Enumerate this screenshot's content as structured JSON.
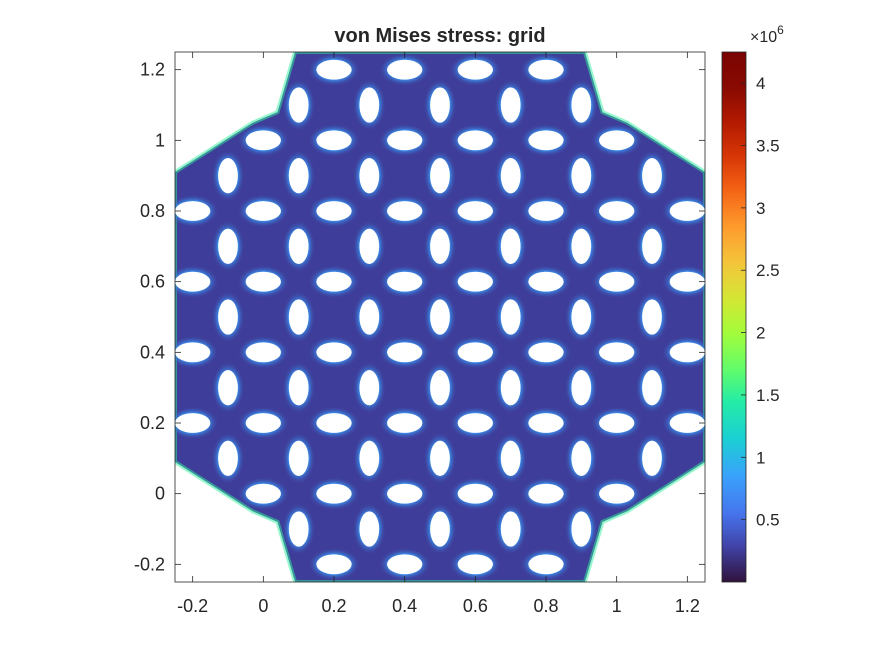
{
  "chart_data": {
    "type": "heatmap",
    "title": "von Mises stress: grid",
    "xlabel": "",
    "ylabel": "",
    "xlim": [
      -0.25,
      1.25
    ],
    "ylim": [
      -0.25,
      1.25
    ],
    "x_ticks": [
      "-0.2",
      "0",
      "0.2",
      "0.4",
      "0.6",
      "0.8",
      "1",
      "1.2"
    ],
    "x_tick_values": [
      -0.2,
      0,
      0.2,
      0.4,
      0.6,
      0.8,
      1,
      1.2
    ],
    "y_ticks": [
      "-0.2",
      "0",
      "0.2",
      "0.4",
      "0.6",
      "0.8",
      "1",
      "1.2"
    ],
    "y_tick_values": [
      -0.2,
      0,
      0.2,
      0.4,
      0.6,
      0.8,
      1,
      1.2
    ],
    "colorbar": {
      "colormap": "turbo",
      "range": [
        0.0,
        4.25
      ],
      "ticks": [
        "0.5",
        "1",
        "1.5",
        "2",
        "2.5",
        "3",
        "3.5",
        "4"
      ],
      "tick_values": [
        0.5,
        1,
        1.5,
        2,
        2.5,
        3,
        3.5,
        4
      ],
      "exponent_base": "×10",
      "exponent_power": "6"
    },
    "domain_outline_xy": [
      [
        0.09,
        1.25
      ],
      [
        0.91,
        1.25
      ],
      [
        0.96,
        1.08
      ],
      [
        1.03,
        1.05
      ],
      [
        1.25,
        0.91
      ],
      [
        1.25,
        0.09
      ],
      [
        1.03,
        -0.05
      ],
      [
        0.96,
        -0.08
      ],
      [
        0.91,
        -0.25
      ],
      [
        0.09,
        -0.25
      ],
      [
        0.04,
        -0.08
      ],
      [
        -0.03,
        -0.05
      ],
      [
        -0.25,
        0.09
      ],
      [
        -0.25,
        0.91
      ],
      [
        -0.03,
        1.05
      ],
      [
        0.04,
        1.08
      ]
    ],
    "hole_grid": {
      "lattice_a": [
        0.0,
        0.2
      ],
      "lattice_b": [
        0.2,
        0.0
      ],
      "origin": [
        0.0,
        0.0
      ],
      "range": [
        -1,
        6
      ],
      "hole_semi_major": 0.05,
      "hole_semi_minor": 0.028,
      "hole_stress_peak": 0.9
    },
    "background_stress": 0.25,
    "grid": false
  }
}
